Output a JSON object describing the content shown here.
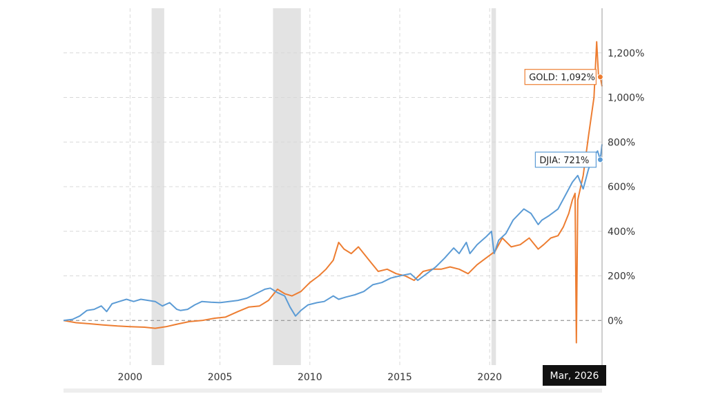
{
  "chart_data": {
    "type": "line",
    "title": "",
    "xlabel": "",
    "ylabel": "",
    "xlim": [
      1996.3,
      2026.25
    ],
    "ylim": [
      -200,
      1400
    ],
    "y_ticks": [
      0,
      200,
      400,
      600,
      800,
      1000,
      1200
    ],
    "y_tick_labels": [
      "0%",
      "200%",
      "400%",
      "600%",
      "800%",
      "1,000%",
      "1,200%"
    ],
    "x_ticks": [
      2000,
      2005,
      2010,
      2015,
      2020
    ],
    "x_tick_labels": [
      "2000",
      "2005",
      "2010",
      "2015",
      "2020"
    ],
    "grid": true,
    "recession_bands": [
      [
        2001.2,
        2001.9
      ],
      [
        2007.95,
        2009.5
      ],
      [
        2020.1,
        2020.35
      ]
    ],
    "cursor_label": "Mar, 2026",
    "series": [
      {
        "name": "DJIA",
        "color": "#5b9bd5",
        "end_label": "DJIA: 721%",
        "end_value": 721,
        "points": [
          [
            1996.3,
            0
          ],
          [
            1996.8,
            5
          ],
          [
            1997.2,
            20
          ],
          [
            1997.6,
            45
          ],
          [
            1998.0,
            50
          ],
          [
            1998.4,
            65
          ],
          [
            1998.7,
            40
          ],
          [
            1999.0,
            75
          ],
          [
            1999.4,
            85
          ],
          [
            1999.8,
            95
          ],
          [
            2000.2,
            85
          ],
          [
            2000.6,
            95
          ],
          [
            2001.0,
            90
          ],
          [
            2001.4,
            85
          ],
          [
            2001.8,
            65
          ],
          [
            2002.2,
            80
          ],
          [
            2002.6,
            50
          ],
          [
            2002.8,
            45
          ],
          [
            2003.2,
            50
          ],
          [
            2003.6,
            70
          ],
          [
            2004.0,
            85
          ],
          [
            2004.5,
            82
          ],
          [
            2005.0,
            80
          ],
          [
            2005.5,
            85
          ],
          [
            2006.0,
            90
          ],
          [
            2006.5,
            100
          ],
          [
            2007.0,
            120
          ],
          [
            2007.5,
            140
          ],
          [
            2007.8,
            145
          ],
          [
            2008.2,
            125
          ],
          [
            2008.6,
            110
          ],
          [
            2008.9,
            60
          ],
          [
            2009.2,
            20
          ],
          [
            2009.5,
            45
          ],
          [
            2009.9,
            70
          ],
          [
            2010.4,
            80
          ],
          [
            2010.8,
            85
          ],
          [
            2011.3,
            110
          ],
          [
            2011.6,
            95
          ],
          [
            2012.0,
            105
          ],
          [
            2012.5,
            115
          ],
          [
            2013.0,
            130
          ],
          [
            2013.5,
            160
          ],
          [
            2014.0,
            170
          ],
          [
            2014.5,
            190
          ],
          [
            2015.0,
            200
          ],
          [
            2015.6,
            210
          ],
          [
            2016.0,
            180
          ],
          [
            2016.5,
            210
          ],
          [
            2017.0,
            240
          ],
          [
            2017.5,
            280
          ],
          [
            2018.0,
            325
          ],
          [
            2018.3,
            300
          ],
          [
            2018.7,
            350
          ],
          [
            2018.9,
            300
          ],
          [
            2019.3,
            340
          ],
          [
            2019.8,
            375
          ],
          [
            2020.1,
            400
          ],
          [
            2020.25,
            300
          ],
          [
            2020.5,
            360
          ],
          [
            2020.9,
            390
          ],
          [
            2021.3,
            450
          ],
          [
            2021.9,
            500
          ],
          [
            2022.3,
            480
          ],
          [
            2022.7,
            430
          ],
          [
            2022.9,
            450
          ],
          [
            2023.3,
            470
          ],
          [
            2023.8,
            500
          ],
          [
            2024.2,
            560
          ],
          [
            2024.6,
            620
          ],
          [
            2024.9,
            650
          ],
          [
            2025.2,
            590
          ],
          [
            2025.5,
            680
          ],
          [
            2025.8,
            740
          ],
          [
            2026.0,
            760
          ],
          [
            2026.15,
            721
          ],
          [
            2026.25,
            790
          ]
        ]
      },
      {
        "name": "GOLD",
        "color": "#ed7d31",
        "end_label": "GOLD: 1,092%",
        "end_value": 1092,
        "points": [
          [
            1996.3,
            0
          ],
          [
            1997.0,
            -10
          ],
          [
            1997.8,
            -15
          ],
          [
            1998.5,
            -20
          ],
          [
            1999.3,
            -25
          ],
          [
            2000.0,
            -28
          ],
          [
            2000.8,
            -30
          ],
          [
            2001.4,
            -35
          ],
          [
            2002.0,
            -28
          ],
          [
            2002.7,
            -15
          ],
          [
            2003.3,
            -5
          ],
          [
            2004.0,
            0
          ],
          [
            2004.7,
            10
          ],
          [
            2005.3,
            15
          ],
          [
            2006.0,
            40
          ],
          [
            2006.6,
            60
          ],
          [
            2007.2,
            65
          ],
          [
            2007.7,
            90
          ],
          [
            2008.2,
            140
          ],
          [
            2008.6,
            120
          ],
          [
            2009.0,
            110
          ],
          [
            2009.5,
            130
          ],
          [
            2010.0,
            170
          ],
          [
            2010.5,
            200
          ],
          [
            2010.9,
            230
          ],
          [
            2011.3,
            270
          ],
          [
            2011.6,
            350
          ],
          [
            2011.9,
            320
          ],
          [
            2012.3,
            300
          ],
          [
            2012.7,
            330
          ],
          [
            2013.0,
            300
          ],
          [
            2013.4,
            260
          ],
          [
            2013.8,
            220
          ],
          [
            2014.3,
            230
          ],
          [
            2014.8,
            210
          ],
          [
            2015.3,
            200
          ],
          [
            2015.8,
            180
          ],
          [
            2016.3,
            220
          ],
          [
            2016.8,
            230
          ],
          [
            2017.3,
            230
          ],
          [
            2017.8,
            240
          ],
          [
            2018.3,
            230
          ],
          [
            2018.8,
            210
          ],
          [
            2019.3,
            250
          ],
          [
            2019.8,
            280
          ],
          [
            2020.3,
            310
          ],
          [
            2020.7,
            370
          ],
          [
            2021.2,
            330
          ],
          [
            2021.7,
            340
          ],
          [
            2022.2,
            370
          ],
          [
            2022.7,
            320
          ],
          [
            2023.0,
            340
          ],
          [
            2023.4,
            370
          ],
          [
            2023.8,
            380
          ],
          [
            2024.1,
            420
          ],
          [
            2024.4,
            480
          ],
          [
            2024.6,
            540
          ],
          [
            2024.75,
            570
          ],
          [
            2024.82,
            -100
          ],
          [
            2024.9,
            540
          ],
          [
            2025.2,
            650
          ],
          [
            2025.5,
            830
          ],
          [
            2025.8,
            1000
          ],
          [
            2025.95,
            1250
          ],
          [
            2026.05,
            1100
          ],
          [
            2026.15,
            1092
          ],
          [
            2026.25,
            1050
          ]
        ]
      }
    ]
  }
}
